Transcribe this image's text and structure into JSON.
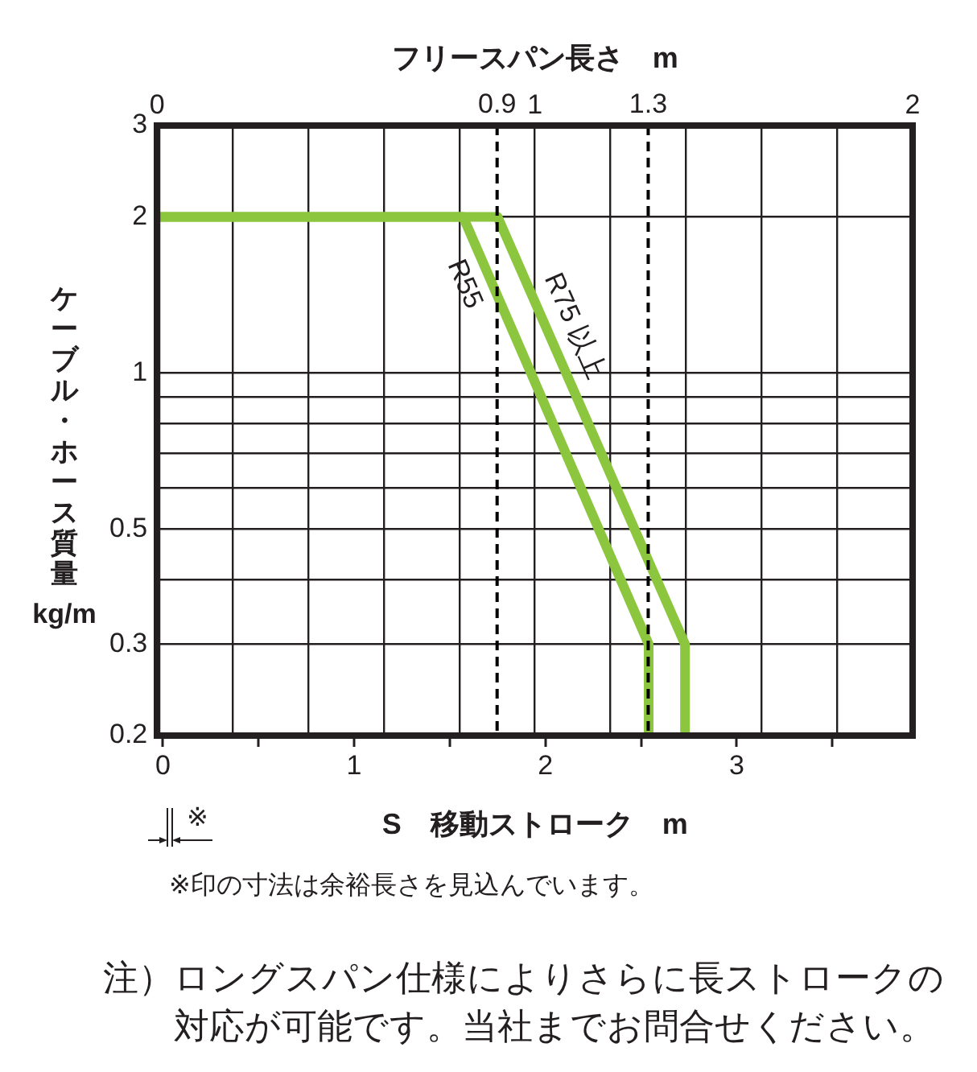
{
  "chart_data": {
    "type": "line",
    "xlabel": "S　移動ストローク　m",
    "x2label": "フリースパン長さ　m",
    "ylabel": "ケーブル・ホース質量 kg/m",
    "log": "y",
    "grid": true,
    "marker": "none",
    "line_style": "solid",
    "xlim": [
      -0.03,
      3.92
    ],
    "xticks": [
      0,
      {
        "value": 0.5,
        "label": null
      },
      1,
      {
        "value": 1.5,
        "label": null
      },
      2,
      {
        "value": 2.5,
        "label": null
      },
      3,
      {
        "value": 3.5,
        "label": null
      }
    ],
    "x2lim": [
      0,
      2
    ],
    "x2ticks": [
      0,
      {
        "value": 0.2,
        "label": null
      },
      {
        "value": 0.4,
        "label": null
      },
      {
        "value": 0.6,
        "label": null
      },
      {
        "value": 0.8,
        "label": null
      },
      1,
      {
        "value": 1.2,
        "label": null
      },
      {
        "value": 1.4,
        "label": null
      },
      {
        "value": 1.6,
        "label": null
      },
      {
        "value": 1.8,
        "label": null
      },
      2
    ],
    "ylim": [
      0.2,
      3
    ],
    "yticks": [
      0.2,
      0.3,
      {
        "value": 0.4,
        "label": null
      },
      0.5,
      {
        "value": 0.6,
        "label": null
      },
      {
        "value": 0.7,
        "label": null
      },
      {
        "value": 0.8,
        "label": null
      },
      {
        "value": 0.9,
        "label": null
      },
      1,
      2,
      3
    ],
    "ref_lines": [
      {
        "axis": "x2",
        "value": 0.9,
        "label": "0.9",
        "line_style": "dashed",
        "color": "#000000"
      },
      {
        "axis": "x2",
        "value": 1.3,
        "label": "1.3",
        "line_style": "dashed",
        "color": "#000000"
      }
    ],
    "series": [
      {
        "name": "R55",
        "color": "#8cc63f",
        "x": [
          -0.03,
          1.57,
          2.54,
          2.54
        ],
        "values": [
          2,
          2,
          0.3,
          0.2
        ]
      },
      {
        "name": "R75 以上",
        "color": "#8cc63f",
        "x": [
          -0.03,
          1.75,
          2.73,
          2.73
        ],
        "values": [
          2,
          2,
          0.3,
          0.2
        ]
      }
    ],
    "annotations": [
      "※",
      "※印の寸法は余裕長さを見込んでいます。",
      "注）ロングスパン仕様によりさらに長ストロークの対応が可能です。当社までお問合せください。"
    ]
  }
}
